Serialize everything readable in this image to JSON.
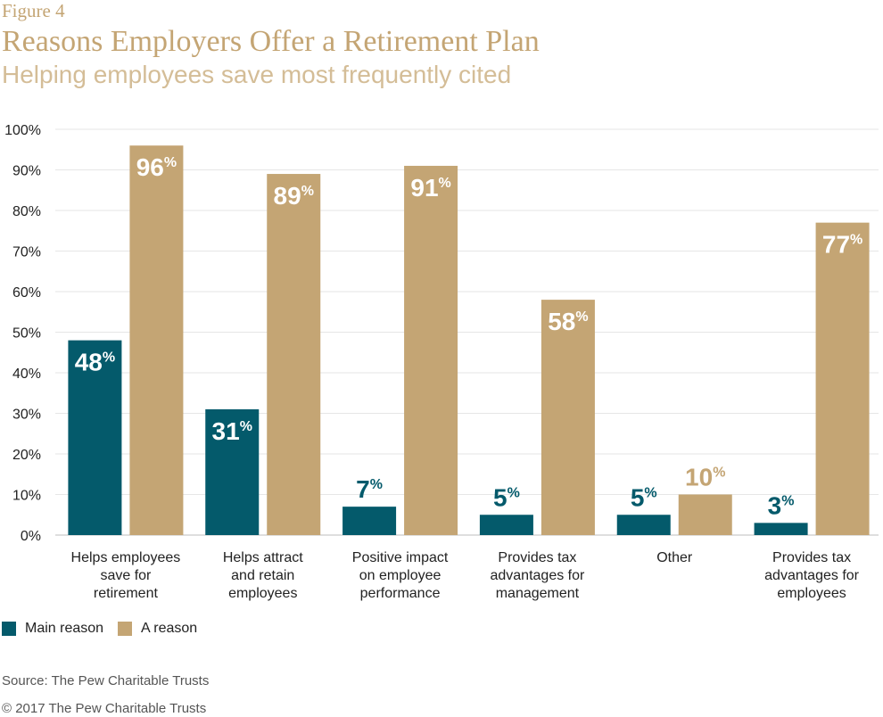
{
  "header": {
    "figure_label": "Figure 4",
    "title": "Reasons Employers Offer a Retirement Plan",
    "subtitle": "Helping employees save most frequently cited"
  },
  "legend": {
    "main_reason": "Main reason",
    "a_reason": "A reason"
  },
  "footer": {
    "source": "Source: The Pew Charitable Trusts",
    "copyright": "© 2017 The Pew Charitable Trusts"
  },
  "colors": {
    "main": "#045a6b",
    "reason": "#c4a574",
    "title": "#c4a574",
    "grid": "#e6e6e6"
  },
  "chart_data": {
    "type": "bar",
    "title": "Reasons Employers Offer a Retirement Plan",
    "subtitle": "Helping employees save most frequently cited",
    "xlabel": "",
    "ylabel": "",
    "ylim": [
      0,
      100
    ],
    "yticks": [
      "0%",
      "10%",
      "20%",
      "30%",
      "40%",
      "50%",
      "60%",
      "70%",
      "80%",
      "90%",
      "100%"
    ],
    "grid": true,
    "legend_position": "bottom-left",
    "categories": [
      [
        "Helps employees",
        "save for",
        "retirement"
      ],
      [
        "Helps attract",
        "and retain",
        "employees"
      ],
      [
        "Positive impact",
        "on employee",
        "performance"
      ],
      [
        "Provides tax",
        "advantages for",
        "management"
      ],
      [
        "Other"
      ],
      [
        "Provides tax",
        "advantages for",
        "employees"
      ]
    ],
    "series": [
      {
        "name": "Main reason",
        "values": [
          48,
          31,
          7,
          5,
          5,
          3
        ]
      },
      {
        "name": "A reason",
        "values": [
          96,
          89,
          91,
          58,
          10,
          77
        ]
      }
    ],
    "value_suffix": "%"
  }
}
